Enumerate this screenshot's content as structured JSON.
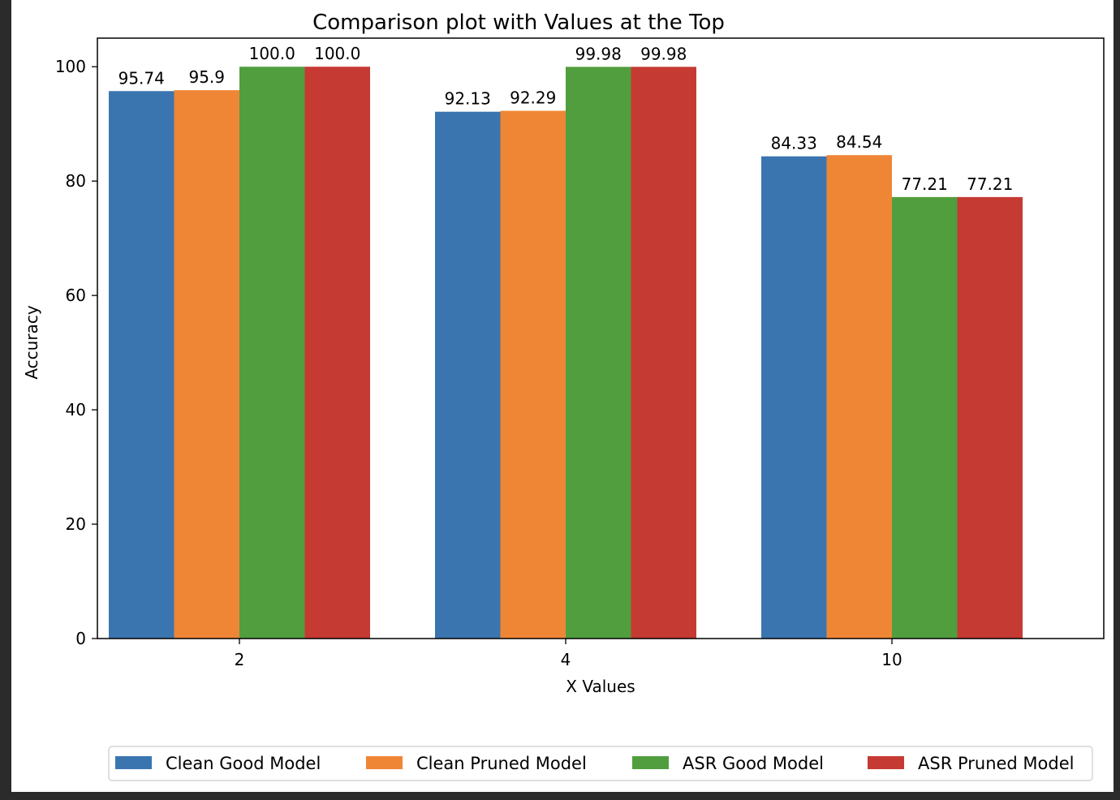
{
  "chart_data": {
    "type": "bar",
    "title": "Comparison plot with Values at the Top",
    "xlabel": "X Values",
    "ylabel": "Accuracy",
    "categories": [
      "2",
      "4",
      "10"
    ],
    "ylim": [
      0,
      105
    ],
    "yticks": [
      0,
      20,
      40,
      60,
      80,
      100
    ],
    "grid": false,
    "legend_position": "bottom-center",
    "series": [
      {
        "name": "Clean Good Model",
        "color": "#3b75af",
        "values": [
          95.74,
          92.13,
          84.33
        ],
        "labels": [
          "95.74",
          "92.13",
          "84.33"
        ]
      },
      {
        "name": "Clean Pruned Model",
        "color": "#ef8636",
        "values": [
          95.9,
          92.29,
          84.54
        ],
        "labels": [
          "95.9",
          "92.29",
          "84.54"
        ]
      },
      {
        "name": "ASR Good Model",
        "color": "#519e3e",
        "values": [
          100.0,
          99.98,
          77.21
        ],
        "labels": [
          "100.0",
          "99.98",
          "77.21"
        ]
      },
      {
        "name": "ASR Pruned Model",
        "color": "#c53a32",
        "values": [
          100.0,
          99.98,
          77.21
        ],
        "labels": [
          "100.0",
          "99.98",
          "77.21"
        ]
      }
    ]
  }
}
